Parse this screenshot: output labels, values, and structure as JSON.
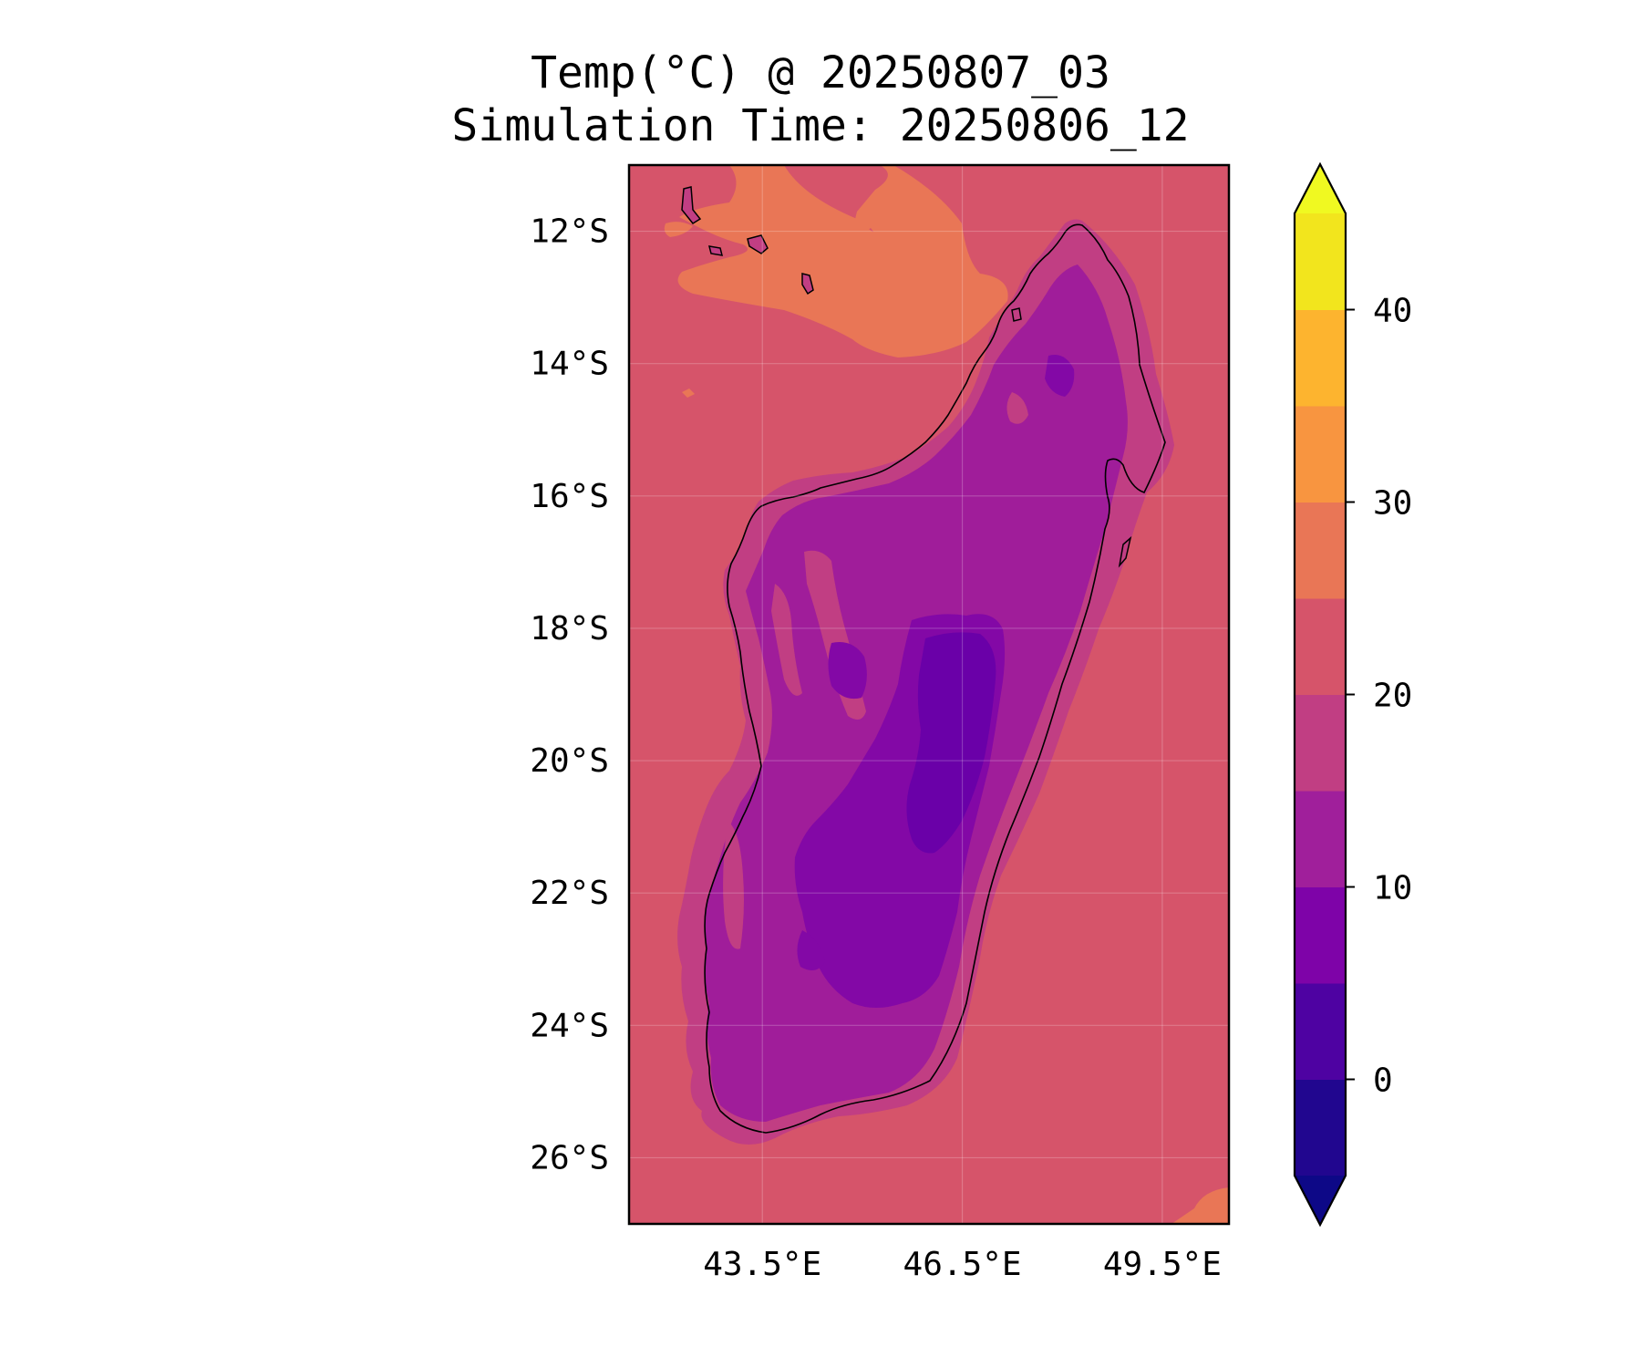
{
  "title": {
    "line1": "Temp(°C) @ 20250807_03",
    "line2": "Simulation Time: 20250806_12"
  },
  "map": {
    "variable": "Temperature",
    "unit": "°C",
    "lat_ticks": [
      "12°S",
      "14°S",
      "16°S",
      "18°S",
      "20°S",
      "22°S",
      "24°S",
      "26°S"
    ],
    "lon_ticks": [
      "43.5°E",
      "46.5°E",
      "49.5°E"
    ],
    "grid": true,
    "extent": {
      "lon": [
        41.5,
        50.5
      ],
      "lat": [
        -27.0,
        -11.0
      ]
    },
    "colors": {
      "ocean_fill": "#d6546a",
      "warm_patch": "#e97656",
      "coast_band": "#c13e83",
      "land_mid": "#a01d9a",
      "land_cool": "#8308a6",
      "land_cold": "#6a00a8",
      "coastline": "#000000"
    }
  },
  "colorbar": {
    "ticks": [
      "0",
      "10",
      "20",
      "30",
      "40"
    ],
    "extend": "both",
    "levels": [
      -5,
      0,
      5,
      10,
      15,
      20,
      25,
      30,
      35,
      40,
      45
    ],
    "colors": [
      "#21068f",
      "#4e02a2",
      "#7e03a8",
      "#a01f9b",
      "#c13e83",
      "#d6546a",
      "#e97656",
      "#f89540",
      "#fdb42f",
      "#f2e51d"
    ],
    "under_color": "#0d0887",
    "over_color": "#f0f921"
  }
}
